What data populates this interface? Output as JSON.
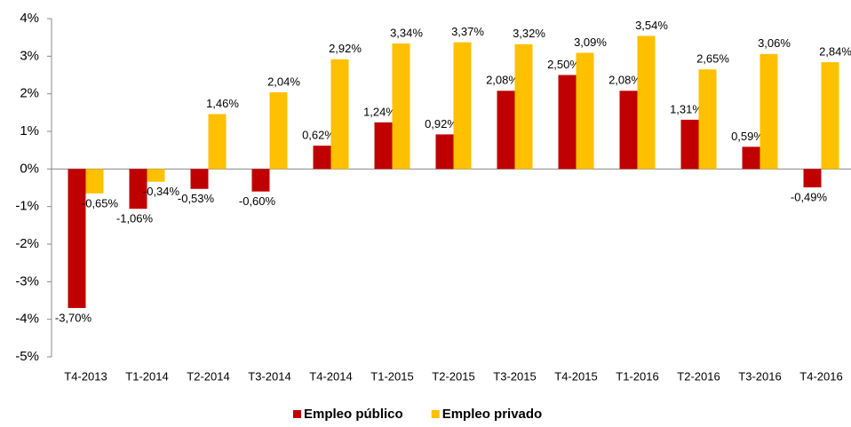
{
  "chart_data": {
    "type": "bar",
    "categories": [
      "T4-2013",
      "T1-2014",
      "T2-2014",
      "T3-2014",
      "T4-2014",
      "T1-2015",
      "T2-2015",
      "T3-2015",
      "T4-2015",
      "T1-2016",
      "T2-2016",
      "T3-2016",
      "T4-2016"
    ],
    "series": [
      {
        "name": "Empleo público",
        "color": "#c00000",
        "values": [
          -3.7,
          -1.06,
          -0.53,
          -0.6,
          0.62,
          1.24,
          0.92,
          2.08,
          2.5,
          2.08,
          1.31,
          0.59,
          -0.49
        ],
        "value_labels": [
          "-3,70%",
          "-1,06%",
          "-0,53%",
          "-0,60%",
          "0,62%",
          "1,24%",
          "0,92%",
          "2,08%",
          "2,50%",
          "2,08%",
          "1,31%",
          "0,59%",
          "-0,49%"
        ]
      },
      {
        "name": "Empleo privado",
        "color": "#ffc000",
        "values": [
          -0.65,
          -0.34,
          1.46,
          2.04,
          2.92,
          3.34,
          3.37,
          3.32,
          3.09,
          3.54,
          2.65,
          3.06,
          2.84
        ],
        "value_labels": [
          "-0,65%",
          "-0,34%",
          "1,46%",
          "2,04%",
          "2,92%",
          "3,34%",
          "3,37%",
          "3,32%",
          "3,09%",
          "3,54%",
          "2,65%",
          "3,06%",
          "2,84%"
        ]
      }
    ],
    "ylim": [
      -5,
      4
    ],
    "yticks": [
      {
        "value": -5,
        "label": "-5%"
      },
      {
        "value": -4,
        "label": "-4%"
      },
      {
        "value": -3,
        "label": "-3%"
      },
      {
        "value": -2,
        "label": "-2%"
      },
      {
        "value": -1,
        "label": "-1%"
      },
      {
        "value": 0,
        "label": "0%"
      },
      {
        "value": 1,
        "label": "1%"
      },
      {
        "value": 2,
        "label": "2%"
      },
      {
        "value": 3,
        "label": "3%"
      },
      {
        "value": 4,
        "label": "4%"
      }
    ],
    "legend": "bottom"
  }
}
